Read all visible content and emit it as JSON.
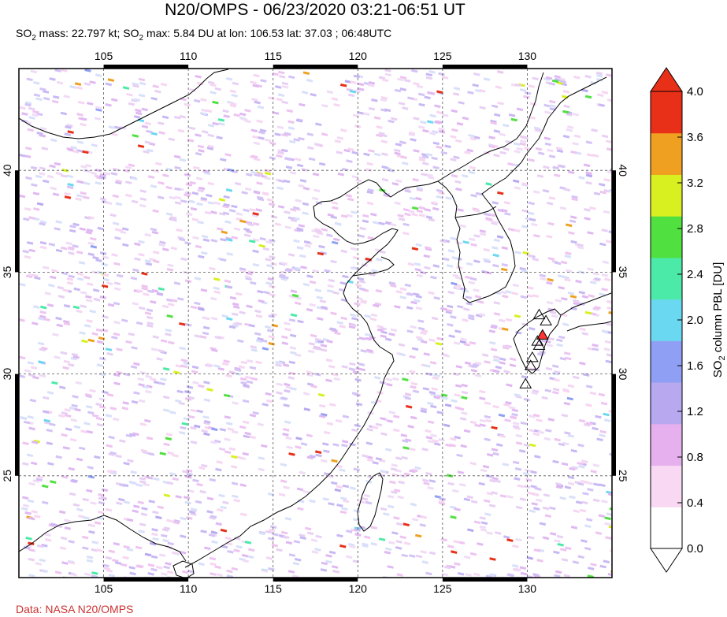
{
  "header": {
    "title": "N20/OMPS - 06/23/2020 03:21-06:51 UT",
    "subtitle_mass_label": "SO",
    "subtitle_mass_sub": "2",
    "subtitle_mass_text": " mass: 22.797 kt; SO",
    "subtitle_max_sub": "2",
    "subtitle_max_text": " max: 5.84 DU at lon: 106.53 lat: 37.03 ; 06:48UTC"
  },
  "map": {
    "lon_range": [
      100,
      135
    ],
    "lat_range": [
      20,
      45
    ],
    "lon_ticks": [
      105,
      110,
      115,
      120,
      125,
      130
    ],
    "lat_ticks": [
      25,
      30,
      35,
      40
    ],
    "lon_tick_labels": [
      "105",
      "110",
      "115",
      "120",
      "125",
      "130"
    ],
    "lat_tick_labels": [
      "25",
      "30",
      "35",
      "40"
    ],
    "grid": "dashed",
    "volcano_markers": [
      {
        "lon": 130.7,
        "lat": 32.9,
        "color": "#ffffff"
      },
      {
        "lon": 131.1,
        "lat": 32.6,
        "color": "#ffffff"
      },
      {
        "lon": 130.9,
        "lat": 31.9,
        "color": "#ff3333"
      },
      {
        "lon": 130.6,
        "lat": 31.6,
        "color": "#ffffff"
      },
      {
        "lon": 130.7,
        "lat": 31.4,
        "color": "#ffffff"
      },
      {
        "lon": 130.3,
        "lat": 30.8,
        "color": "#ffffff"
      },
      {
        "lon": 130.2,
        "lat": 30.4,
        "color": "#ffffff"
      },
      {
        "lon": 129.9,
        "lat": 29.5,
        "color": "#ffffff"
      }
    ]
  },
  "colorbar": {
    "label": "SO2 column PBL [DU]",
    "label_main": "SO",
    "label_sub": "2",
    "label_rest": " column PBL [DU]",
    "min": 0.0,
    "max": 4.0,
    "ticks": [
      "0.0",
      "0.4",
      "0.8",
      "1.2",
      "1.6",
      "2.0",
      "2.4",
      "2.8",
      "3.2",
      "3.6",
      "4.0"
    ],
    "colors": [
      "#ffffff",
      "#f8d8f2",
      "#e6b0ee",
      "#b8a8f0",
      "#8fa0f4",
      "#6ad8f0",
      "#4ceaa8",
      "#50e040",
      "#d8f020",
      "#f0a020",
      "#e83018"
    ]
  },
  "footer": {
    "credit": "Data: NASA N20/OMPS"
  }
}
